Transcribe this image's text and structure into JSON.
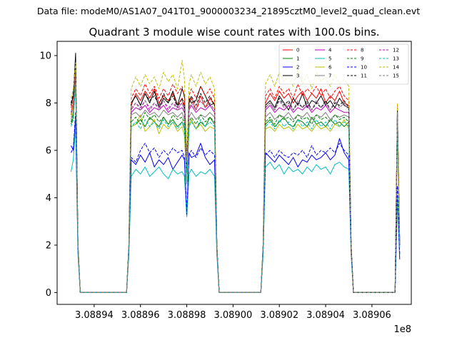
{
  "suptitle": "Data file: modeM0/AS1A07_041T01_9000003234_21895cztM0_level2_quad_clean.evt",
  "chart_data": {
    "type": "line",
    "title": "Quadrant 3 module wise count rates with 100.0s bins.",
    "xlabel": "",
    "ylabel": "",
    "x_offset_label": "1e8",
    "x_scale": 100000000,
    "xlim": [
      308892400,
      308907700
    ],
    "ylim": [
      -0.5,
      10.6
    ],
    "grid": false,
    "legend_position": "upper-right",
    "legend_columns": 4,
    "x_ticks": [
      {
        "value": 308894000,
        "label": "3.08894"
      },
      {
        "value": 308896000,
        "label": "3.08896"
      },
      {
        "value": 308898000,
        "label": "3.08898"
      },
      {
        "value": 308900000,
        "label": "3.08900"
      },
      {
        "value": 308902000,
        "label": "3.08902"
      },
      {
        "value": 308904000,
        "label": "3.08904"
      },
      {
        "value": 308906000,
        "label": "3.08906"
      }
    ],
    "y_ticks": [
      {
        "value": 0,
        "label": "0"
      },
      {
        "value": 2,
        "label": "2"
      },
      {
        "value": 4,
        "label": "4"
      },
      {
        "value": 6,
        "label": "6"
      },
      {
        "value": 8,
        "label": "8"
      },
      {
        "value": 10,
        "label": "10"
      }
    ],
    "x_values": [
      308893000,
      308893100,
      308893200,
      308893300,
      308893400,
      308893600,
      308895400,
      308895500,
      308895600,
      308895800,
      308896000,
      308896200,
      308896400,
      308896600,
      308896800,
      308897000,
      308897200,
      308897400,
      308897600,
      308897800,
      308897900,
      308898000,
      308898100,
      308898200,
      308898400,
      308898600,
      308898800,
      308899000,
      308899200,
      308899300,
      308899400,
      308899600,
      308901200,
      308901300,
      308901400,
      308901600,
      308901800,
      308902000,
      308902200,
      308902400,
      308902600,
      308902800,
      308903000,
      308903200,
      308903400,
      308903600,
      308903800,
      308904000,
      308904200,
      308904400,
      308904600,
      308904800,
      308905000,
      308905100,
      308905200,
      308905400,
      308907000,
      308907100,
      308907200
    ],
    "series": [
      {
        "name": "0",
        "color": "#ff0000",
        "dash": "solid",
        "values": [
          7.6,
          8.0,
          9.6,
          2.0,
          0,
          0,
          0,
          2.0,
          7.9,
          8.4,
          8.1,
          8.5,
          8.2,
          8.6,
          8.0,
          8.3,
          8.1,
          8.4,
          7.9,
          8.2,
          7.7,
          5.0,
          8.0,
          8.2,
          7.7,
          8.3,
          7.8,
          8.2,
          7.9,
          2.0,
          0,
          0,
          0,
          2.0,
          8.0,
          8.4,
          8.1,
          8.5,
          8.2,
          8.4,
          8.0,
          8.3,
          8.5,
          8.1,
          8.4,
          8.2,
          8.6,
          8.0,
          8.3,
          8.1,
          8.5,
          8.0,
          7.9,
          2.0,
          0,
          0,
          0,
          7.8,
          2.0
        ]
      },
      {
        "name": "1",
        "color": "#008000",
        "dash": "solid",
        "values": [
          7.1,
          7.4,
          9.0,
          2.0,
          0,
          0,
          0,
          2.0,
          7.0,
          7.1,
          7.3,
          7.0,
          7.4,
          7.2,
          7.0,
          7.4,
          7.1,
          7.3,
          7.0,
          7.2,
          6.9,
          4.6,
          7.0,
          7.3,
          6.9,
          7.2,
          7.0,
          7.4,
          7.1,
          2.0,
          0,
          0,
          0,
          2.0,
          7.1,
          7.3,
          7.0,
          7.2,
          7.4,
          7.1,
          7.0,
          7.3,
          7.2,
          7.0,
          7.4,
          7.1,
          7.2,
          7.0,
          7.3,
          7.1,
          7.2,
          7.0,
          7.2,
          2.0,
          0,
          0,
          0,
          7.2,
          2.0
        ]
      },
      {
        "name": "2",
        "color": "#0000ff",
        "dash": "solid",
        "values": [
          6.2,
          6.0,
          7.4,
          1.8,
          0,
          0,
          0,
          1.8,
          5.6,
          5.4,
          5.8,
          5.5,
          5.9,
          5.3,
          5.6,
          5.4,
          5.7,
          5.2,
          5.5,
          5.8,
          5.6,
          3.2,
          5.9,
          5.7,
          5.8,
          6.3,
          5.7,
          5.4,
          5.6,
          1.8,
          0,
          0,
          0,
          1.8,
          5.9,
          5.7,
          5.5,
          5.8,
          5.6,
          5.4,
          5.7,
          5.3,
          5.6,
          5.5,
          5.8,
          5.6,
          5.7,
          5.9,
          5.6,
          5.8,
          6.5,
          5.9,
          5.6,
          1.8,
          0,
          0,
          0,
          4.0,
          1.4
        ]
      },
      {
        "name": "3",
        "color": "#000000",
        "dash": "solid",
        "values": [
          7.9,
          8.3,
          10.1,
          2.0,
          0,
          0,
          0,
          2.0,
          8.0,
          8.3,
          7.9,
          8.4,
          8.0,
          8.5,
          7.8,
          8.2,
          8.0,
          8.5,
          7.9,
          8.6,
          8.3,
          5.6,
          8.2,
          8.0,
          8.1,
          8.7,
          8.3,
          7.9,
          8.0,
          2.0,
          0,
          0,
          0,
          2.0,
          7.9,
          8.1,
          7.8,
          8.3,
          8.0,
          7.7,
          8.2,
          7.9,
          8.4,
          7.8,
          8.1,
          8.0,
          8.3,
          7.9,
          8.1,
          7.8,
          8.2,
          7.9,
          7.8,
          2.0,
          0,
          0,
          0,
          7.6,
          2.0
        ]
      },
      {
        "name": "4",
        "color": "#c000c0",
        "dash": "solid",
        "values": [
          7.5,
          7.8,
          9.3,
          2.0,
          0,
          0,
          0,
          2.0,
          7.6,
          7.8,
          7.7,
          7.9,
          7.6,
          7.8,
          7.7,
          7.9,
          7.6,
          7.8,
          7.7,
          7.8,
          7.6,
          4.9,
          7.7,
          7.9,
          7.6,
          7.8,
          7.7,
          7.9,
          7.6,
          2.0,
          0,
          0,
          0,
          2.0,
          7.7,
          7.9,
          7.6,
          7.8,
          7.7,
          7.9,
          7.6,
          7.8,
          7.7,
          7.9,
          7.6,
          7.8,
          7.7,
          7.9,
          7.6,
          7.8,
          7.7,
          7.6,
          7.6,
          2.0,
          0,
          0,
          0,
          7.5,
          2.0
        ]
      },
      {
        "name": "5",
        "color": "#00bfbf",
        "dash": "solid",
        "values": [
          5.1,
          5.6,
          7.0,
          1.6,
          0,
          0,
          0,
          1.6,
          4.9,
          5.2,
          5.0,
          5.3,
          4.9,
          5.1,
          5.3,
          5.0,
          4.8,
          5.2,
          5.0,
          5.1,
          4.9,
          3.2,
          5.0,
          5.2,
          4.9,
          5.1,
          5.0,
          5.2,
          4.9,
          1.6,
          0,
          0,
          0,
          1.6,
          5.3,
          5.5,
          5.2,
          5.4,
          5.0,
          5.3,
          5.1,
          5.2,
          5.0,
          5.3,
          5.1,
          5.4,
          5.2,
          5.3,
          5.0,
          5.4,
          5.5,
          5.3,
          5.2,
          1.6,
          0,
          0,
          0,
          4.0,
          1.6
        ]
      },
      {
        "name": "6",
        "color": "#bfbf00",
        "dash": "solid",
        "values": [
          7.4,
          7.8,
          9.1,
          2.0,
          0,
          0,
          0,
          2.0,
          7.0,
          7.1,
          7.5,
          6.8,
          7.0,
          7.3,
          6.7,
          7.1,
          6.9,
          7.2,
          6.8,
          7.0,
          6.6,
          4.8,
          7.0,
          7.3,
          6.9,
          7.1,
          6.8,
          7.0,
          6.9,
          2.0,
          0,
          0,
          0,
          2.0,
          6.9,
          7.0,
          6.8,
          7.1,
          6.9,
          7.0,
          6.8,
          7.1,
          6.9,
          7.0,
          6.8,
          7.1,
          6.9,
          7.0,
          6.8,
          7.1,
          7.0,
          7.3,
          6.9,
          2.0,
          0,
          0,
          0,
          7.0,
          2.0
        ]
      },
      {
        "name": "7",
        "color": "#808080",
        "dash": "solid",
        "values": [
          7.3,
          7.6,
          9.0,
          2.0,
          0,
          0,
          0,
          2.0,
          7.5,
          7.6,
          7.4,
          7.7,
          7.5,
          7.6,
          7.4,
          7.7,
          7.5,
          7.6,
          7.4,
          7.6,
          7.3,
          4.8,
          7.4,
          7.6,
          7.3,
          7.5,
          7.4,
          7.6,
          7.4,
          2.0,
          0,
          0,
          0,
          2.0,
          7.4,
          7.6,
          7.3,
          7.5,
          7.4,
          7.6,
          7.3,
          7.5,
          7.4,
          7.6,
          7.3,
          7.5,
          7.4,
          7.6,
          7.3,
          7.5,
          7.4,
          7.5,
          7.4,
          2.0,
          0,
          0,
          0,
          7.3,
          2.0
        ]
      },
      {
        "name": "8",
        "color": "#ff0000",
        "dash": "dashed",
        "values": [
          7.8,
          8.1,
          9.5,
          2.0,
          0,
          0,
          0,
          2.0,
          8.2,
          8.6,
          8.3,
          8.8,
          8.4,
          8.7,
          8.2,
          8.6,
          8.3,
          8.8,
          8.4,
          8.7,
          8.2,
          5.2,
          8.3,
          8.6,
          8.2,
          8.7,
          8.3,
          8.6,
          8.2,
          2.0,
          0,
          0,
          0,
          2.0,
          8.3,
          8.6,
          8.2,
          8.7,
          8.4,
          8.6,
          8.2,
          8.8,
          8.3,
          8.6,
          8.4,
          8.7,
          8.3,
          8.6,
          8.2,
          8.5,
          8.7,
          8.3,
          8.1,
          2.0,
          0,
          0,
          0,
          7.9,
          2.0
        ]
      },
      {
        "name": "9",
        "color": "#008000",
        "dash": "dashed",
        "values": [
          7.2,
          7.5,
          9.2,
          2.0,
          0,
          0,
          0,
          2.0,
          7.2,
          7.4,
          7.1,
          7.6,
          7.3,
          7.5,
          7.2,
          7.4,
          7.1,
          7.5,
          7.3,
          7.4,
          7.1,
          4.7,
          7.2,
          7.4,
          7.1,
          7.5,
          7.2,
          7.4,
          7.2,
          2.0,
          0,
          0,
          0,
          2.0,
          7.2,
          7.4,
          7.1,
          7.5,
          7.3,
          7.4,
          7.2,
          7.5,
          7.3,
          7.4,
          7.1,
          7.5,
          7.3,
          7.4,
          7.2,
          7.5,
          7.3,
          7.4,
          7.2,
          2.0,
          0,
          0,
          0,
          7.2,
          2.0
        ]
      },
      {
        "name": "10",
        "color": "#0000ff",
        "dash": "dashed",
        "values": [
          5.9,
          6.1,
          7.6,
          1.8,
          0,
          0,
          0,
          1.8,
          5.7,
          5.5,
          6.0,
          6.3,
          5.9,
          6.1,
          5.7,
          6.0,
          5.8,
          6.1,
          5.9,
          6.0,
          5.7,
          3.3,
          5.8,
          6.0,
          5.7,
          6.1,
          5.8,
          6.0,
          5.8,
          1.8,
          0,
          0,
          0,
          1.8,
          5.8,
          6.0,
          5.7,
          6.0,
          5.8,
          5.7,
          5.9,
          5.8,
          6.0,
          5.7,
          6.2,
          5.8,
          6.0,
          5.9,
          6.1,
          5.9,
          6.3,
          6.0,
          5.8,
          1.8,
          0,
          0,
          0,
          4.5,
          1.6
        ]
      },
      {
        "name": "11",
        "color": "#000000",
        "dash": "dashed",
        "values": [
          8.0,
          8.4,
          9.9,
          2.0,
          0,
          0,
          0,
          2.0,
          8.0,
          8.3,
          7.9,
          8.4,
          8.1,
          8.3,
          7.9,
          8.4,
          8.0,
          8.3,
          7.8,
          8.2,
          7.9,
          5.3,
          8.0,
          8.3,
          7.9,
          8.4,
          8.0,
          8.3,
          7.9,
          2.0,
          0,
          0,
          0,
          2.0,
          7.8,
          8.0,
          7.7,
          8.2,
          7.9,
          8.1,
          7.7,
          8.0,
          7.8,
          8.1,
          7.7,
          8.0,
          7.8,
          8.1,
          7.7,
          8.0,
          7.9,
          8.1,
          7.8,
          2.0,
          0,
          0,
          0,
          7.7,
          2.0
        ]
      },
      {
        "name": "12",
        "color": "#c000c0",
        "dash": "dashed",
        "values": [
          7.6,
          7.9,
          9.4,
          2.0,
          0,
          0,
          0,
          2.0,
          7.7,
          8.0,
          7.8,
          8.1,
          7.7,
          8.0,
          7.8,
          8.1,
          7.7,
          8.0,
          7.8,
          8.0,
          7.7,
          5.0,
          7.8,
          8.0,
          7.7,
          8.1,
          7.8,
          8.0,
          7.7,
          2.0,
          0,
          0,
          0,
          2.0,
          7.8,
          8.0,
          7.7,
          8.1,
          7.8,
          8.0,
          7.7,
          8.1,
          7.8,
          8.0,
          7.7,
          8.1,
          7.8,
          8.0,
          7.7,
          8.1,
          7.8,
          8.0,
          7.7,
          2.0,
          0,
          0,
          0,
          7.6,
          2.0
        ]
      },
      {
        "name": "13",
        "color": "#00bfbf",
        "dash": "dashed",
        "values": [
          7.0,
          7.3,
          8.8,
          1.9,
          0,
          0,
          0,
          1.9,
          7.0,
          7.2,
          6.9,
          7.3,
          7.0,
          7.2,
          6.9,
          7.3,
          7.0,
          7.2,
          6.9,
          7.2,
          7.0,
          4.6,
          7.0,
          7.2,
          6.9,
          7.3,
          7.0,
          7.2,
          7.0,
          1.9,
          0,
          0,
          0,
          1.9,
          7.0,
          7.2,
          6.9,
          7.3,
          7.0,
          7.2,
          6.9,
          7.3,
          7.0,
          7.2,
          6.9,
          7.3,
          7.0,
          7.2,
          6.9,
          7.3,
          7.0,
          7.2,
          7.0,
          1.9,
          0,
          0,
          0,
          7.0,
          1.9
        ]
      },
      {
        "name": "14",
        "color": "#bfbf00",
        "dash": "dashed",
        "values": [
          8.2,
          8.6,
          9.7,
          2.1,
          0,
          0,
          0,
          2.1,
          8.6,
          9.1,
          8.7,
          9.2,
          8.8,
          9.1,
          8.6,
          9.3,
          8.9,
          9.2,
          8.6,
          9.8,
          9.0,
          5.5,
          8.8,
          9.2,
          8.7,
          9.3,
          8.8,
          9.1,
          8.6,
          2.1,
          0,
          0,
          0,
          2.1,
          8.8,
          9.2,
          8.7,
          9.3,
          8.9,
          9.1,
          8.7,
          9.4,
          8.8,
          9.2,
          8.6,
          9.3,
          8.9,
          9.1,
          8.7,
          9.2,
          8.8,
          9.0,
          8.7,
          2.1,
          0,
          0,
          0,
          8.0,
          2.1
        ]
      },
      {
        "name": "15",
        "color": "#808080",
        "dash": "dashed",
        "values": [
          7.6,
          7.9,
          9.3,
          2.0,
          0,
          0,
          0,
          2.0,
          7.8,
          8.0,
          7.7,
          8.1,
          7.8,
          8.0,
          7.7,
          8.1,
          7.8,
          8.0,
          7.7,
          8.0,
          7.8,
          5.0,
          7.8,
          8.0,
          7.7,
          8.1,
          7.8,
          8.0,
          7.7,
          2.0,
          0,
          0,
          0,
          2.0,
          7.8,
          8.0,
          7.7,
          8.1,
          7.8,
          8.0,
          7.7,
          8.1,
          7.8,
          8.0,
          7.7,
          8.1,
          7.8,
          8.0,
          7.7,
          8.1,
          7.8,
          8.0,
          7.7,
          2.0,
          0,
          0,
          0,
          7.6,
          2.0
        ]
      }
    ]
  }
}
